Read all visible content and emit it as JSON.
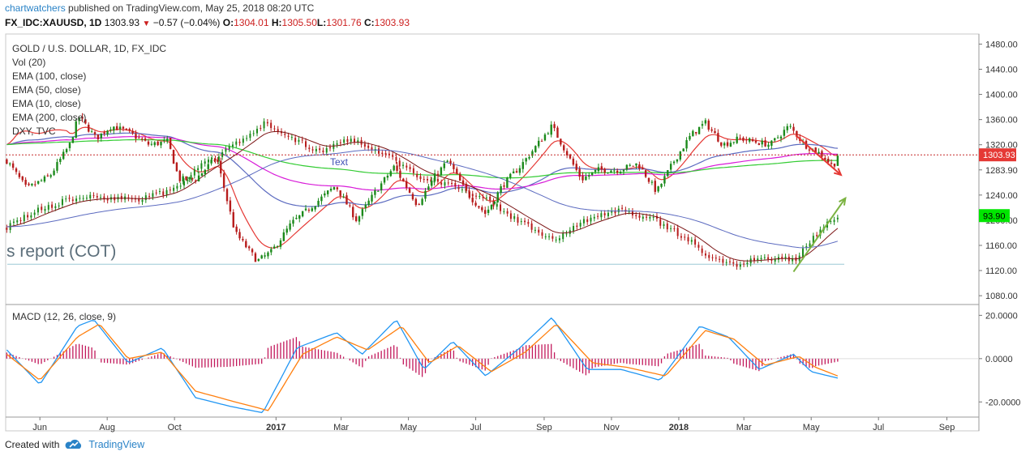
{
  "header": {
    "user": "chartwatchers",
    "published": "published on TradingView.com, May 25, 2018 08:20 UTC",
    "symbol": "FX_IDC:XAUUSD, 1D",
    "price": "1303.93",
    "change_arrow": "▼",
    "change": "−0.57 (−0.04%)",
    "o_label": "O:",
    "o": "1304.01",
    "h_label": "H:",
    "h": "1305.50",
    "l_label": "L:",
    "l": "1301.76",
    "c_label": "C:",
    "c": "1303.93"
  },
  "legend": [
    "GOLD / U.S. DOLLAR, 1D, FX_IDC",
    "Vol (20)",
    "EMA (100, close)",
    "EMA (50, close)",
    "EMA (10, close)",
    "EMA (200, close)",
    "DXY, TVC"
  ],
  "annotations": {
    "text_label": "Text",
    "cot_label": "s report (COT)"
  },
  "macd_label": "MACD (12, 26, close, 9)",
  "footer": {
    "created": "Created with",
    "brand": "TradingView"
  },
  "colors": {
    "up": "#1b8a1b",
    "down": "#b71c1c",
    "ema10": "#e53935",
    "ema50": "#5c6bc0",
    "ema100": "#d81bd8",
    "ema200": "#33cc33",
    "dxy": "#7b1414",
    "macd": "#2196f3",
    "signal": "#ff7f0e",
    "hist": "#c2185b",
    "price_tag": "#e53935",
    "dxy_tag": "#00e600"
  },
  "chart_data": [
    {
      "type": "line",
      "title": "GOLD / U.S. DOLLAR, 1D, FX_IDC",
      "x_ticks": [
        "Jun",
        "Aug",
        "Oct",
        "2017",
        "Mar",
        "May",
        "Jul",
        "Sep",
        "Nov",
        "2018",
        "Mar",
        "May",
        "Jul",
        "Sep"
      ],
      "y_ticks": [
        1480,
        1440,
        1400,
        1360,
        1320,
        1280,
        1240,
        1200,
        1160,
        1120,
        1080
      ],
      "y_tick_labels": [
        "1480.00",
        "1440.00",
        "1400.00",
        "1360.00",
        "1320.00",
        "1283.90",
        "1240.00",
        "1200.00",
        "1160.00",
        "1120.00",
        "1080.00"
      ],
      "ylim": [
        1066,
        1496
      ],
      "series": [
        {
          "name": "GOLD / U.S. DOLLAR",
          "x": [
            "2016-05-02",
            "2016-05-20",
            "2016-06-10",
            "2016-06-28",
            "2016-07-06",
            "2016-07-22",
            "2016-08-05",
            "2016-08-20",
            "2016-09-08",
            "2016-09-25",
            "2016-10-05",
            "2016-10-20",
            "2016-11-08",
            "2016-11-25",
            "2016-12-15",
            "2016-12-28",
            "2017-01-15",
            "2017-02-01",
            "2017-02-24",
            "2017-03-15",
            "2017-04-01",
            "2017-04-18",
            "2017-05-09",
            "2017-05-25",
            "2017-06-06",
            "2017-06-22",
            "2017-07-10",
            "2017-07-25",
            "2017-08-10",
            "2017-08-28",
            "2017-09-08",
            "2017-09-25",
            "2017-10-05",
            "2017-10-20",
            "2017-11-08",
            "2017-11-25",
            "2017-12-12",
            "2017-12-28",
            "2018-01-12",
            "2018-01-25",
            "2018-02-10",
            "2018-02-25",
            "2018-03-10",
            "2018-03-25",
            "2018-04-11",
            "2018-04-25",
            "2018-05-10",
            "2018-05-21",
            "2018-05-25"
          ],
          "values": [
            1295,
            1250,
            1270,
            1320,
            1365,
            1330,
            1350,
            1340,
            1320,
            1325,
            1265,
            1265,
            1300,
            1180,
            1135,
            1150,
            1195,
            1220,
            1255,
            1200,
            1245,
            1285,
            1225,
            1270,
            1295,
            1245,
            1210,
            1255,
            1285,
            1325,
            1350,
            1295,
            1265,
            1280,
            1280,
            1290,
            1245,
            1295,
            1335,
            1355,
            1320,
            1330,
            1325,
            1320,
            1350,
            1320,
            1305,
            1285,
            1304
          ]
        },
        {
          "name": "DXY, TVC",
          "x": [
            "2016-05-02",
            "2016-06-01",
            "2016-07-01",
            "2016-08-01",
            "2016-09-01",
            "2016-10-01",
            "2016-10-25",
            "2016-11-20",
            "2016-12-20",
            "2017-01-15",
            "2017-02-10",
            "2017-03-10",
            "2017-04-10",
            "2017-05-10",
            "2017-06-10",
            "2017-07-10",
            "2017-08-10",
            "2017-09-08",
            "2017-10-10",
            "2017-11-10",
            "2017-12-10",
            "2018-01-10",
            "2018-02-01",
            "2018-02-16",
            "2018-03-10",
            "2018-04-01",
            "2018-04-17",
            "2018-05-01",
            "2018-05-15",
            "2018-05-25"
          ],
          "values": [
            92.8,
            94.5,
            95.6,
            95.7,
            95.5,
            96.5,
            98.8,
            100.5,
            103.0,
            101.5,
            100.3,
            101.5,
            100.0,
            97.7,
            97.0,
            95.5,
            93.3,
            91.5,
            93.5,
            94.5,
            93.5,
            91.5,
            89.5,
            89.0,
            89.5,
            89.8,
            89.5,
            91.5,
            93.2,
            93.9
          ]
        }
      ],
      "price_tag": "1303.93",
      "dxy_tag": "93.90"
    },
    {
      "type": "line",
      "title": "MACD (12, 26, close, 9)",
      "y_ticks": [
        20,
        0,
        -20
      ],
      "y_tick_labels": [
        "20.0000",
        "0.0000",
        "-20.0000"
      ],
      "ylim": [
        -27,
        25
      ],
      "series": [
        {
          "name": "MACD",
          "x": [
            "2016-05-02",
            "2016-06-01",
            "2016-07-05",
            "2016-07-20",
            "2016-08-20",
            "2016-09-20",
            "2016-10-20",
            "2016-11-20",
            "2016-12-20",
            "2017-01-20",
            "2017-02-25",
            "2017-03-20",
            "2017-04-20",
            "2017-05-15",
            "2017-06-10",
            "2017-07-10",
            "2017-08-10",
            "2017-09-08",
            "2017-10-10",
            "2017-11-10",
            "2017-12-15",
            "2018-01-20",
            "2018-02-15",
            "2018-03-15",
            "2018-04-15",
            "2018-05-01",
            "2018-05-25"
          ],
          "values": [
            4,
            -12,
            15,
            18,
            -2,
            5,
            -18,
            -22,
            -25,
            5,
            12,
            2,
            18,
            -5,
            8,
            -8,
            5,
            19,
            -5,
            -5,
            -10,
            15,
            10,
            -5,
            2,
            -6,
            -9
          ]
        },
        {
          "name": "Signal",
          "x": [
            "2016-05-02",
            "2016-06-01",
            "2016-07-05",
            "2016-07-25",
            "2016-08-20",
            "2016-09-20",
            "2016-10-20",
            "2016-11-25",
            "2016-12-25",
            "2017-01-25",
            "2017-02-25",
            "2017-03-25",
            "2017-04-25",
            "2017-05-20",
            "2017-06-15",
            "2017-07-15",
            "2017-08-15",
            "2017-09-12",
            "2017-10-15",
            "2017-11-15",
            "2017-12-20",
            "2018-01-25",
            "2018-02-20",
            "2018-03-20",
            "2018-04-20",
            "2018-05-05",
            "2018-05-25"
          ],
          "values": [
            2,
            -10,
            10,
            16,
            0,
            3,
            -15,
            -20,
            -24,
            2,
            10,
            4,
            15,
            -2,
            6,
            -6,
            3,
            16,
            -2,
            -4,
            -8,
            13,
            9,
            -3,
            1,
            -4,
            -8
          ]
        }
      ]
    }
  ]
}
